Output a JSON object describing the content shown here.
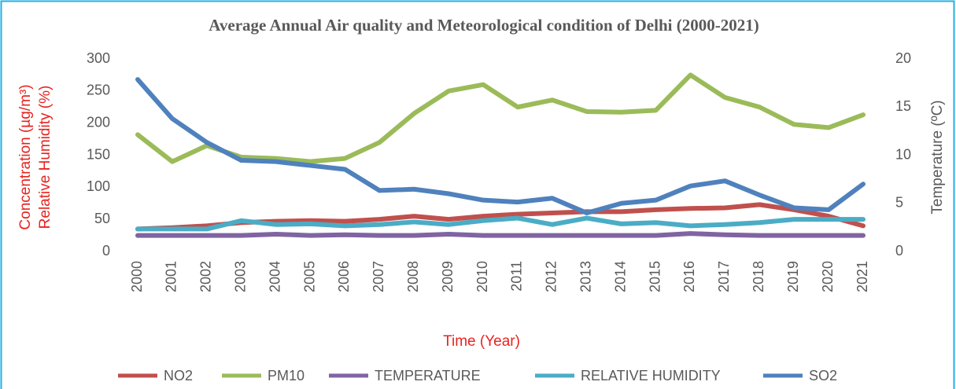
{
  "chart_data": {
    "type": "line",
    "title": "Average Annual Air quality and Meteorological condition of Delhi (2000-2021)",
    "xlabel": "Time (Year)",
    "ylabel": [
      "Concentration (µg/m³)",
      "Relative Humidity (%)"
    ],
    "y2label": "Temperature (ºC)",
    "categories": [
      "2000",
      "2001",
      "2002",
      "2003",
      "2004",
      "2005",
      "2006",
      "2007",
      "2008",
      "2009",
      "2010",
      "2011",
      "2012",
      "2013",
      "2014",
      "2015",
      "2016",
      "2017",
      "2018",
      "2019",
      "2020",
      "2021"
    ],
    "series": [
      {
        "name": "NO2",
        "color": "#c0504d",
        "values": [
          35,
          37,
          40,
          45,
          47,
          48,
          47,
          50,
          55,
          50,
          55,
          58,
          60,
          62,
          62,
          65,
          67,
          68,
          73,
          65,
          55,
          40
        ]
      },
      {
        "name": "PM10",
        "color": "#9bbb59",
        "values": [
          182,
          140,
          165,
          147,
          145,
          140,
          145,
          170,
          215,
          250,
          260,
          225,
          236,
          218,
          217,
          220,
          275,
          240,
          225,
          198,
          193,
          213
        ]
      },
      {
        "name": "TEMPERATURE",
        "color": "#8064a2",
        "values": [
          25,
          25,
          25,
          25,
          27,
          25,
          26,
          25,
          25,
          27,
          25,
          25,
          25,
          25,
          25,
          25,
          28,
          26,
          25,
          25,
          25,
          25
        ]
      },
      {
        "name": "RELATIVE HUMIDITY",
        "color": "#4bacc6",
        "values": [
          35,
          35,
          35,
          48,
          42,
          43,
          40,
          42,
          46,
          42,
          48,
          52,
          42,
          52,
          43,
          45,
          40,
          42,
          45,
          50,
          50,
          50
        ]
      },
      {
        "name": "SO2",
        "color": "#4f81bd",
        "values": [
          268,
          207,
          170,
          142,
          140,
          134,
          128,
          95,
          97,
          90,
          80,
          77,
          83,
          60,
          75,
          80,
          102,
          110,
          88,
          68,
          65,
          105
        ]
      }
    ],
    "ylim": [
      0,
      300
    ],
    "yticks": [
      0,
      50,
      100,
      150,
      200,
      250,
      300
    ],
    "y2lim": [
      0,
      20
    ],
    "y2ticks": [
      0,
      5,
      10,
      15,
      20
    ],
    "grid": false,
    "legend": "bottom"
  }
}
